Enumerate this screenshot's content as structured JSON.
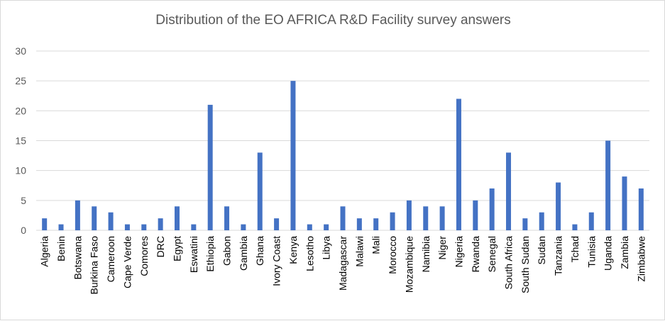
{
  "chart_data": {
    "type": "bar",
    "title": "Distribution of the EO AFRICA R&D Facility survey answers",
    "xlabel": "",
    "ylabel": "",
    "ylim": [
      0,
      30
    ],
    "yticks": [
      0,
      5,
      10,
      15,
      20,
      25,
      30
    ],
    "grid": true,
    "legend": "none",
    "bar_color": "#4472c4",
    "categories": [
      "Algeria",
      "Benin",
      "Botswana",
      "Burkina Faso",
      "Cameroon",
      "Cape Verde",
      "Comores",
      "DRC",
      "Egypt",
      "Eswatini",
      "Ethiopia",
      "Gabon",
      "Gambia",
      "Ghana",
      "Ivory Coast",
      "Kenya",
      "Lesotho",
      "Libya",
      "Madagascar",
      "Malawi",
      "Mali",
      "Morocco",
      "Mozambique",
      "Namibia",
      "Niger",
      "Nigeria",
      "Rwanda",
      "Senegal",
      "South Africa",
      "South Sudan",
      "Sudan",
      "Tanzania",
      "Tchad",
      "Tunisia",
      "Uganda",
      "Zambia",
      "Zimbabwe"
    ],
    "values": [
      2,
      1,
      5,
      4,
      3,
      1,
      1,
      2,
      4,
      1,
      21,
      4,
      1,
      13,
      2,
      25,
      1,
      1,
      4,
      2,
      2,
      3,
      5,
      4,
      4,
      22,
      5,
      7,
      13,
      2,
      3,
      8,
      1,
      3,
      15,
      9,
      7
    ]
  }
}
